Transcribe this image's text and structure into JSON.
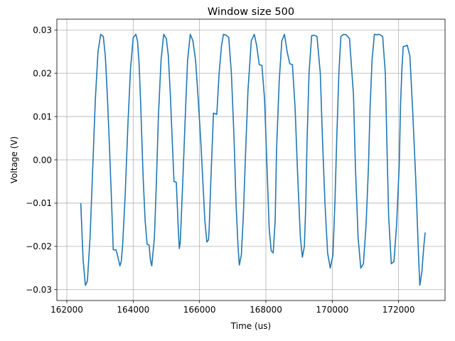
{
  "chart_data": {
    "type": "line",
    "title": "Window size 500",
    "xlabel": "Time (us)",
    "ylabel": "Voltage (V)",
    "xlim": [
      161700,
      173400
    ],
    "ylim": [
      -0.0325,
      0.0325
    ],
    "xticks": [
      162000,
      164000,
      166000,
      168000,
      170000,
      172000
    ],
    "xtick_labels": [
      "162000",
      "164000",
      "166000",
      "168000",
      "170000",
      "172000"
    ],
    "yticks": [
      -0.03,
      -0.02,
      -0.01,
      0.0,
      0.01,
      0.02,
      0.03
    ],
    "ytick_labels": [
      "−0.03",
      "−0.02",
      "−0.01",
      "0.00",
      "0.01",
      "0.02",
      "0.03"
    ],
    "grid": true,
    "series": [
      {
        "color": "#1f77b4",
        "x": [
          162420,
          162490,
          162560,
          162620,
          162700,
          162780,
          162860,
          162940,
          163020,
          163100,
          163160,
          163220,
          163280,
          163340,
          163400,
          163480,
          163510,
          163600,
          163640,
          163680,
          163760,
          163840,
          163920,
          164000,
          164080,
          164130,
          164180,
          164230,
          164300,
          164360,
          164420,
          164480,
          164520,
          164560,
          164640,
          164700,
          164760,
          164840,
          164920,
          165000,
          165060,
          165120,
          165180,
          165230,
          165300,
          165360,
          165390,
          165420,
          165500,
          165580,
          165640,
          165720,
          165800,
          165880,
          165960,
          166040,
          166100,
          166160,
          166220,
          166270,
          166290,
          166340,
          166420,
          166520,
          166590,
          166660,
          166720,
          166800,
          166880,
          166960,
          167040,
          167100,
          167160,
          167200,
          167260,
          167320,
          167380,
          167460,
          167560,
          167650,
          167720,
          167800,
          167880,
          167960,
          168040,
          168100,
          168160,
          168220,
          168280,
          168320,
          168400,
          168480,
          168560,
          168640,
          168720,
          168800,
          168880,
          168960,
          169040,
          169100,
          169160,
          169200,
          169240,
          169300,
          169380,
          169460,
          169540,
          169640,
          169700,
          169780,
          169860,
          169940,
          170020,
          170080,
          170140,
          170200,
          170260,
          170340,
          170420,
          170520,
          170640,
          170700,
          170780,
          170860,
          170940,
          171020,
          171090,
          171140,
          171200,
          171270,
          171340,
          171420,
          171520,
          171600,
          171650,
          171700,
          171780,
          171860,
          171940,
          172020,
          172060,
          172100,
          172140,
          172180,
          172260,
          172340,
          172420,
          172520,
          172600,
          172640,
          172700,
          172760,
          172800
        ],
        "y": [
          -0.01,
          -0.023,
          -0.029,
          -0.028,
          -0.018,
          -0.002,
          0.014,
          0.025,
          0.029,
          0.0285,
          0.024,
          0.015,
          0.004,
          -0.008,
          -0.0208,
          -0.0208,
          -0.0215,
          -0.0245,
          -0.0235,
          -0.02,
          -0.008,
          0.008,
          0.021,
          0.0282,
          0.029,
          0.0275,
          0.022,
          0.012,
          -0.004,
          -0.014,
          -0.0195,
          -0.0197,
          -0.0232,
          -0.0245,
          -0.018,
          -0.005,
          0.01,
          0.023,
          0.029,
          0.028,
          0.024,
          0.015,
          0.004,
          -0.005,
          -0.0052,
          -0.016,
          -0.0205,
          -0.019,
          -0.004,
          0.012,
          0.023,
          0.029,
          0.0275,
          0.023,
          0.014,
          0.004,
          -0.005,
          -0.014,
          -0.019,
          -0.0185,
          -0.016,
          -0.005,
          0.0108,
          0.0105,
          0.02,
          0.0262,
          0.029,
          0.0288,
          0.0283,
          0.02,
          0.005,
          -0.01,
          -0.02,
          -0.0243,
          -0.022,
          -0.013,
          0.0,
          0.016,
          0.0275,
          0.029,
          0.0265,
          0.022,
          0.0218,
          0.014,
          -0.003,
          -0.016,
          -0.021,
          -0.0215,
          -0.014,
          0.002,
          0.018,
          0.0275,
          0.029,
          0.025,
          0.0222,
          0.022,
          0.012,
          -0.004,
          -0.018,
          -0.0225,
          -0.02,
          -0.011,
          0.004,
          0.02,
          0.0287,
          0.0288,
          0.0285,
          0.02,
          0.006,
          -0.01,
          -0.0215,
          -0.025,
          -0.022,
          -0.01,
          0.006,
          0.02,
          0.0285,
          0.029,
          0.0289,
          0.028,
          0.015,
          -0.002,
          -0.018,
          -0.025,
          -0.024,
          -0.015,
          -0.002,
          0.012,
          0.023,
          0.029,
          0.0289,
          0.029,
          0.0285,
          0.02,
          0.003,
          -0.013,
          -0.024,
          -0.0235,
          -0.015,
          -0.001,
          0.013,
          0.021,
          0.0262,
          0.0262,
          0.0265,
          0.024,
          0.012,
          -0.005,
          -0.022,
          -0.029,
          -0.026,
          -0.02,
          -0.0168
        ]
      }
    ]
  }
}
